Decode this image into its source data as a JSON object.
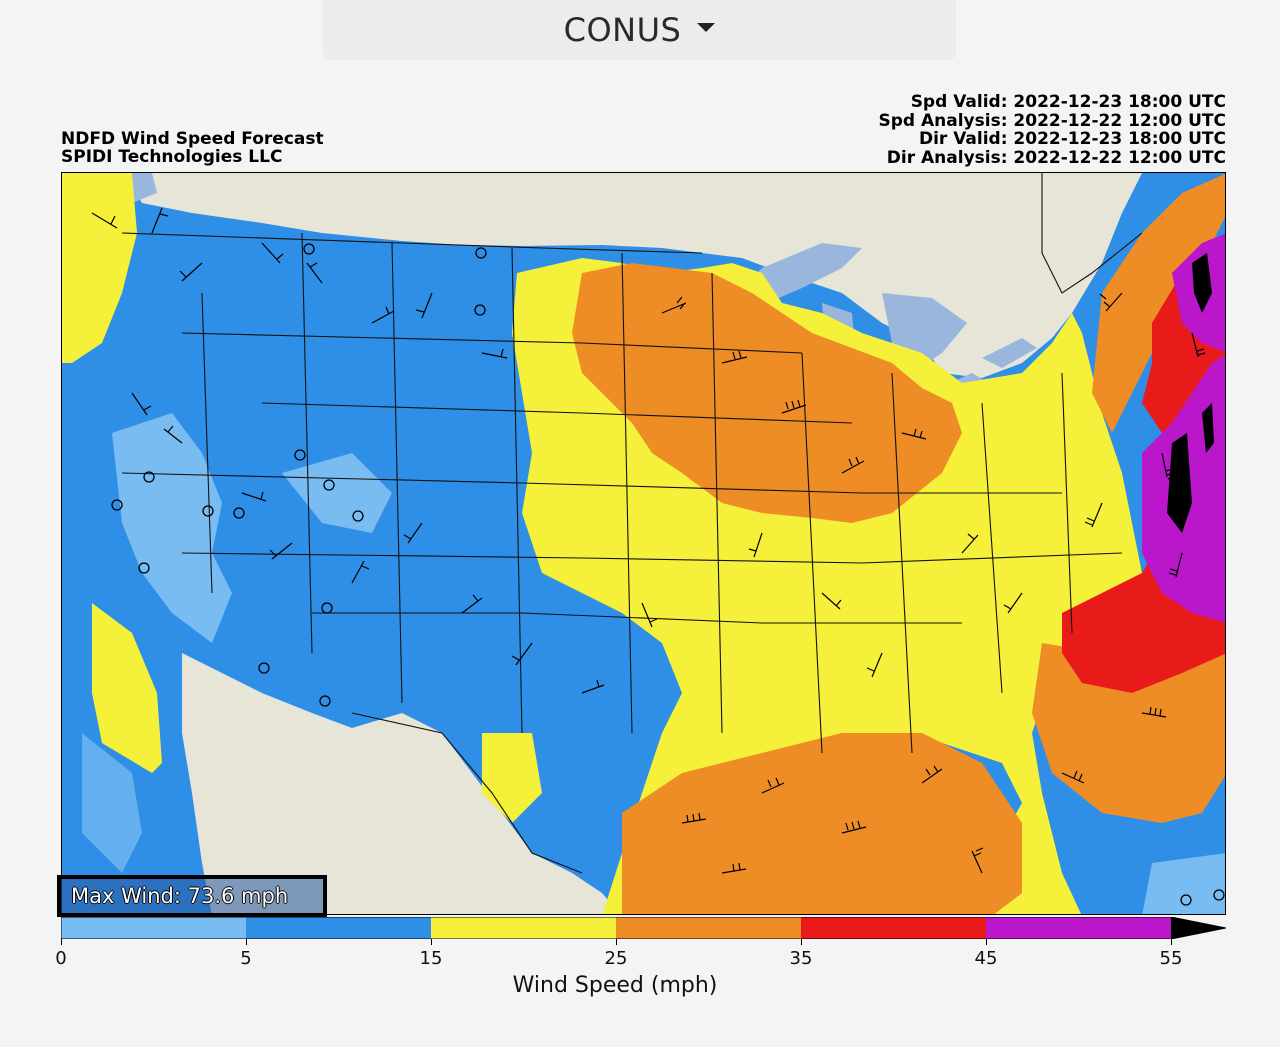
{
  "region_select": {
    "value": "CONUS"
  },
  "header": {
    "title": "NDFD Wind Speed Forecast",
    "org": "SPIDI Technologies LLC",
    "times": [
      "Spd Valid: 2022-12-23 18:00 UTC",
      "Spd Analysis: 2022-12-22 12:00 UTC",
      "Dir Valid: 2022-12-23 18:00 UTC",
      "Dir Analysis: 2022-12-22 12:00 UTC"
    ]
  },
  "max_wind": "Max Wind: 73.6 mph",
  "colorbar": {
    "label": "Wind Speed (mph)",
    "ticks": [
      "0",
      "5",
      "15",
      "25",
      "35",
      "45",
      "55"
    ],
    "bins": [
      {
        "from": 0,
        "to": 5,
        "color": "#79bcf2"
      },
      {
        "from": 5,
        "to": 15,
        "color": "#2f8fe6"
      },
      {
        "from": 15,
        "to": 25,
        "color": "#f5f13a"
      },
      {
        "from": 25,
        "to": 35,
        "color": "#ee8c26"
      },
      {
        "from": 35,
        "to": 45,
        "color": "#e81a1a"
      },
      {
        "from": 45,
        "to": 55,
        "color": "#b917c9"
      },
      {
        "from": 55,
        "to": 73.6,
        "color": "#000000"
      }
    ],
    "extend": "max"
  },
  "colors": {
    "land_bg": "#e6e5d8",
    "water": "#9ab6dc",
    "light_blue": "#79bcf2",
    "blue": "#2f8fe6",
    "yellow": "#f5f13a",
    "orange": "#ee8c26",
    "red": "#e81a1a",
    "purple": "#b917c9"
  }
}
